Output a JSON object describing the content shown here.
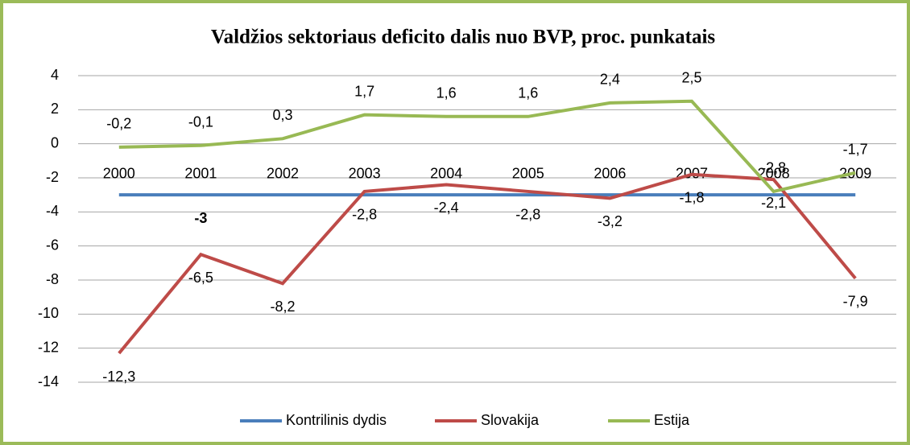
{
  "chart_data": {
    "type": "line",
    "title": "Valdžios sektoriaus deficito dalis nuo BVP, proc. punkatais",
    "categories": [
      "2000",
      "2001",
      "2002",
      "2003",
      "2004",
      "2005",
      "2006",
      "2007",
      "2008",
      "2009"
    ],
    "series": [
      {
        "name": "Kontrilinis dydis",
        "color": "#4a7ebb",
        "values": [
          -3,
          -3,
          -3,
          -3,
          -3,
          -3,
          -3,
          -3,
          -3,
          -3
        ],
        "value_labels": [
          null,
          "-3",
          null,
          null,
          null,
          null,
          null,
          null,
          null,
          null
        ]
      },
      {
        "name": "Slovakija",
        "color": "#be4b48",
        "values": [
          -12.3,
          -6.5,
          -8.2,
          -2.8,
          -2.4,
          -2.8,
          -3.2,
          -1.8,
          -2.1,
          -7.9
        ],
        "value_labels": [
          "-12,3",
          "-6,5",
          "-8,2",
          "-2,8",
          "-2,4",
          "-2,8",
          "-3,2",
          "-1,8",
          "-2,1",
          "-7,9"
        ]
      },
      {
        "name": "Estija",
        "color": "#98b954",
        "values": [
          -0.2,
          -0.1,
          0.3,
          1.7,
          1.6,
          1.6,
          2.4,
          2.5,
          -2.8,
          -1.7
        ],
        "value_labels": [
          "-0,2",
          "-0,1",
          "0,3",
          "1,7",
          "1,6",
          "1,6",
          "2,4",
          "2,5",
          "-2,8",
          "-1,7"
        ]
      }
    ],
    "ylim": [
      -14,
      4
    ],
    "yticks": [
      4,
      2,
      0,
      -2,
      -4,
      -6,
      -8,
      -10,
      -12,
      -14
    ],
    "grid": true,
    "legend": "bottom"
  }
}
